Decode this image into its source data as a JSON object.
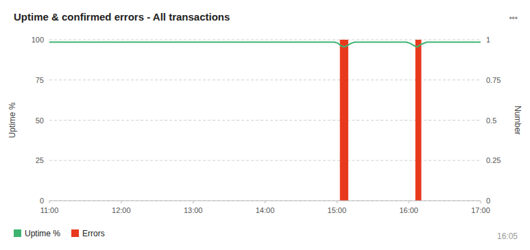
{
  "chart_data": {
    "type": "line",
    "title": "Uptime & confirmed errors - All transactions",
    "y_label": "Uptime %",
    "y2_label": "Number",
    "xlim": [
      0,
      360
    ],
    "xticks": [
      {
        "value": 0,
        "label": "11:00"
      },
      {
        "value": 60,
        "label": "12:00"
      },
      {
        "value": 120,
        "label": "13:00"
      },
      {
        "value": 180,
        "label": "14:00"
      },
      {
        "value": 240,
        "label": "15:00"
      },
      {
        "value": 300,
        "label": "16:00"
      },
      {
        "value": 360,
        "label": "17:00"
      }
    ],
    "ylim": [
      0,
      100
    ],
    "yticks": [
      0,
      25,
      50,
      75,
      100
    ],
    "y2lim": [
      0,
      1
    ],
    "y2ticks": [
      0,
      0.25,
      0.5,
      0.75,
      1
    ],
    "grid": true,
    "legend": "bottom-left",
    "series": [
      {
        "name": "Uptime %",
        "type": "line",
        "color": "#3cb371",
        "x": [
          0,
          238,
          241,
          243,
          246,
          249,
          252,
          255,
          260,
          298,
          301,
          304,
          307,
          310,
          315,
          360
        ],
        "values": [
          98.5,
          98.5,
          97.8,
          96.5,
          95.5,
          96.5,
          97.8,
          98.5,
          98.5,
          98.5,
          97.8,
          96.5,
          95.5,
          97.0,
          98.5,
          98.5
        ]
      },
      {
        "name": "Errors",
        "type": "bar",
        "axis": "y2",
        "color": "#e8391d",
        "x": [
          246,
          308
        ],
        "widths": [
          7,
          5
        ],
        "values": [
          1.0,
          1.0
        ]
      }
    ],
    "annotations": [
      "•••",
      "16:05"
    ]
  }
}
